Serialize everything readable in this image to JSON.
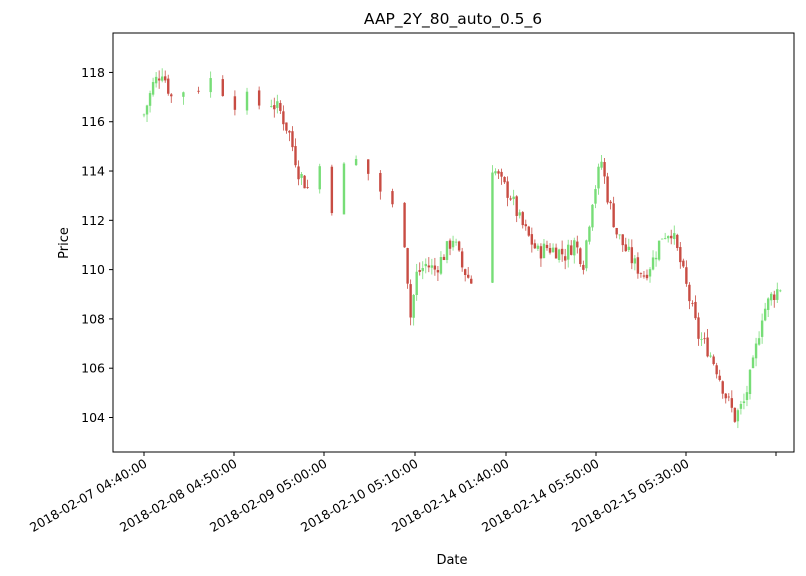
{
  "chart_data": {
    "type": "candlestick",
    "title": "AAP_2Y_80_auto_0.5_6",
    "xlabel": "Date",
    "ylabel": "Price",
    "ylim": [
      102.6,
      119.6
    ],
    "yticks": [
      104,
      106,
      108,
      110,
      112,
      114,
      116,
      118
    ],
    "grid": false,
    "x_tick_labels": [
      "2018-02-07 04:40:00",
      "2018-02-08 04:50:00",
      "2018-02-09 05:00:00",
      "2018-02-10 05:10:00",
      "2018-02-14 01:40:00",
      "2018-02-14 05:50:00",
      "2018-02-15 05:30:00"
    ],
    "up_color": "#77dd77",
    "down_color": "#c84c43",
    "close_path": [
      [
        0,
        116.3
      ],
      [
        3,
        117.5
      ],
      [
        6,
        118.1
      ],
      [
        9,
        117.0
      ],
      [
        13,
        117.3
      ],
      [
        18,
        117.4
      ],
      [
        22,
        117.7
      ],
      [
        26,
        117.3
      ],
      [
        30,
        116.8
      ],
      [
        34,
        116.9
      ],
      [
        38,
        116.7
      ],
      [
        42,
        116.8
      ],
      [
        45,
        116.4
      ],
      [
        48,
        115.5
      ],
      [
        51,
        114.0
      ],
      [
        54,
        113.3
      ],
      [
        58,
        114.2
      ],
      [
        62,
        112.6
      ],
      [
        66,
        114.1
      ],
      [
        70,
        114.4
      ],
      [
        74,
        113.9
      ],
      [
        78,
        113.2
      ],
      [
        82,
        112.5
      ],
      [
        86,
        111.2
      ],
      [
        88,
        108.1
      ],
      [
        90,
        109.8
      ],
      [
        93,
        110.2
      ],
      [
        96,
        110.0
      ],
      [
        99,
        110.6
      ],
      [
        102,
        111.3
      ],
      [
        105,
        110.1
      ],
      [
        108,
        109.5
      ],
      [
        115,
        114.2
      ],
      [
        118,
        113.5
      ],
      [
        121,
        113.0
      ],
      [
        124,
        112.0
      ],
      [
        127,
        111.3
      ],
      [
        130,
        110.7
      ],
      [
        133,
        110.9
      ],
      [
        136,
        110.8
      ],
      [
        139,
        110.6
      ],
      [
        142,
        111.1
      ],
      [
        145,
        110.3
      ],
      [
        148,
        112.9
      ],
      [
        151,
        114.4
      ],
      [
        153,
        113.0
      ],
      [
        156,
        111.5
      ],
      [
        159,
        110.8
      ],
      [
        162,
        110.2
      ],
      [
        165,
        109.8
      ],
      [
        168,
        110.4
      ],
      [
        171,
        111.4
      ],
      [
        174,
        111.6
      ],
      [
        177,
        110.3
      ],
      [
        180,
        108.8
      ],
      [
        183,
        107.3
      ],
      [
        186,
        106.8
      ],
      [
        189,
        106.0
      ],
      [
        192,
        104.9
      ],
      [
        195,
        104.0
      ],
      [
        198,
        104.6
      ],
      [
        201,
        106.1
      ],
      [
        204,
        108.2
      ],
      [
        207,
        108.9
      ],
      [
        210,
        109.3
      ]
    ]
  }
}
